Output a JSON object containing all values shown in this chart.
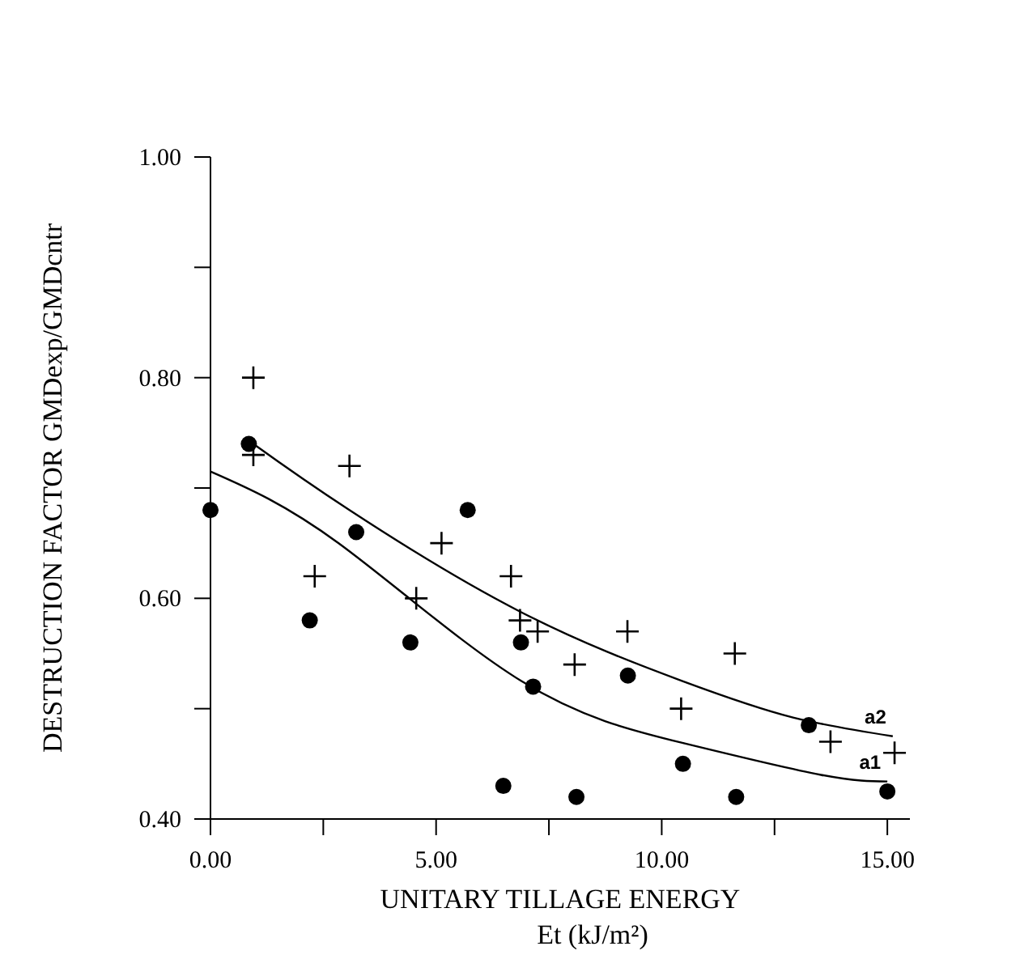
{
  "chart_data": {
    "type": "scatter",
    "xlabel": "UNITARY TILLAGE ENERGY\nEt (kJ/m²)",
    "ylabel": "DESTRUCTION FACTOR GMDexp/GMDcntr",
    "xlim": [
      0,
      15.5
    ],
    "ylim": [
      0.4,
      1.0
    ],
    "xticks": [
      {
        "value": 0,
        "label": "0.00"
      },
      {
        "value": 2.5,
        "label": null
      },
      {
        "value": 5,
        "label": "5.00"
      },
      {
        "value": 7.5,
        "label": null
      },
      {
        "value": 10,
        "label": "10.00"
      },
      {
        "value": 12.5,
        "label": null
      },
      {
        "value": 15,
        "label": "15.00"
      }
    ],
    "yticks": [
      {
        "value": 0.4,
        "label": "0.40"
      },
      {
        "value": 0.5,
        "label": null
      },
      {
        "value": 0.6,
        "label": "0.60"
      },
      {
        "value": 0.7,
        "label": null
      },
      {
        "value": 0.8,
        "label": "0.80"
      },
      {
        "value": 0.9,
        "label": null
      },
      {
        "value": 1.0,
        "label": "1.00"
      }
    ],
    "grid": false,
    "series": [
      {
        "marker": "circle",
        "color": "#000000",
        "x": [
          0,
          0.85,
          2.2,
          3.23,
          4.43,
          5.7,
          6.49,
          6.88,
          7.15,
          8.11,
          9.25,
          10.47,
          11.65,
          13.26,
          15.0
        ],
        "values": [
          0.68,
          0.74,
          0.58,
          0.66,
          0.56,
          0.68,
          0.43,
          0.56,
          0.52,
          0.42,
          0.53,
          0.45,
          0.42,
          0.485,
          0.425
        ]
      },
      {
        "marker": "cross",
        "color": "#000000",
        "x": [
          0.95,
          0.95,
          2.31,
          3.08,
          4.56,
          5.12,
          6.66,
          6.86,
          7.25,
          8.07,
          9.24,
          10.43,
          11.62,
          13.74,
          15.16
        ],
        "values": [
          0.8,
          0.73,
          0.62,
          0.72,
          0.6,
          0.65,
          0.62,
          0.58,
          0.57,
          0.54,
          0.57,
          0.5,
          0.55,
          0.47,
          0.46
        ]
      },
      {
        "type": "line",
        "name": "a1",
        "color": "#000000",
        "marker": "none",
        "line_style": "solid",
        "x": [
          0,
          2.84,
          6.89,
          10.46,
          13.53,
          15.0
        ],
        "values": [
          0.715,
          0.65,
          0.525,
          0.469,
          0.44,
          0.434
        ]
      },
      {
        "type": "line",
        "name": "a2",
        "color": "#000000",
        "marker": "none",
        "line_style": "solid",
        "x": [
          0.95,
          3.08,
          6.86,
          10.46,
          12.91,
          15.12
        ],
        "values": [
          0.74,
          0.68,
          0.588,
          0.525,
          0.492,
          0.475
        ]
      }
    ]
  }
}
